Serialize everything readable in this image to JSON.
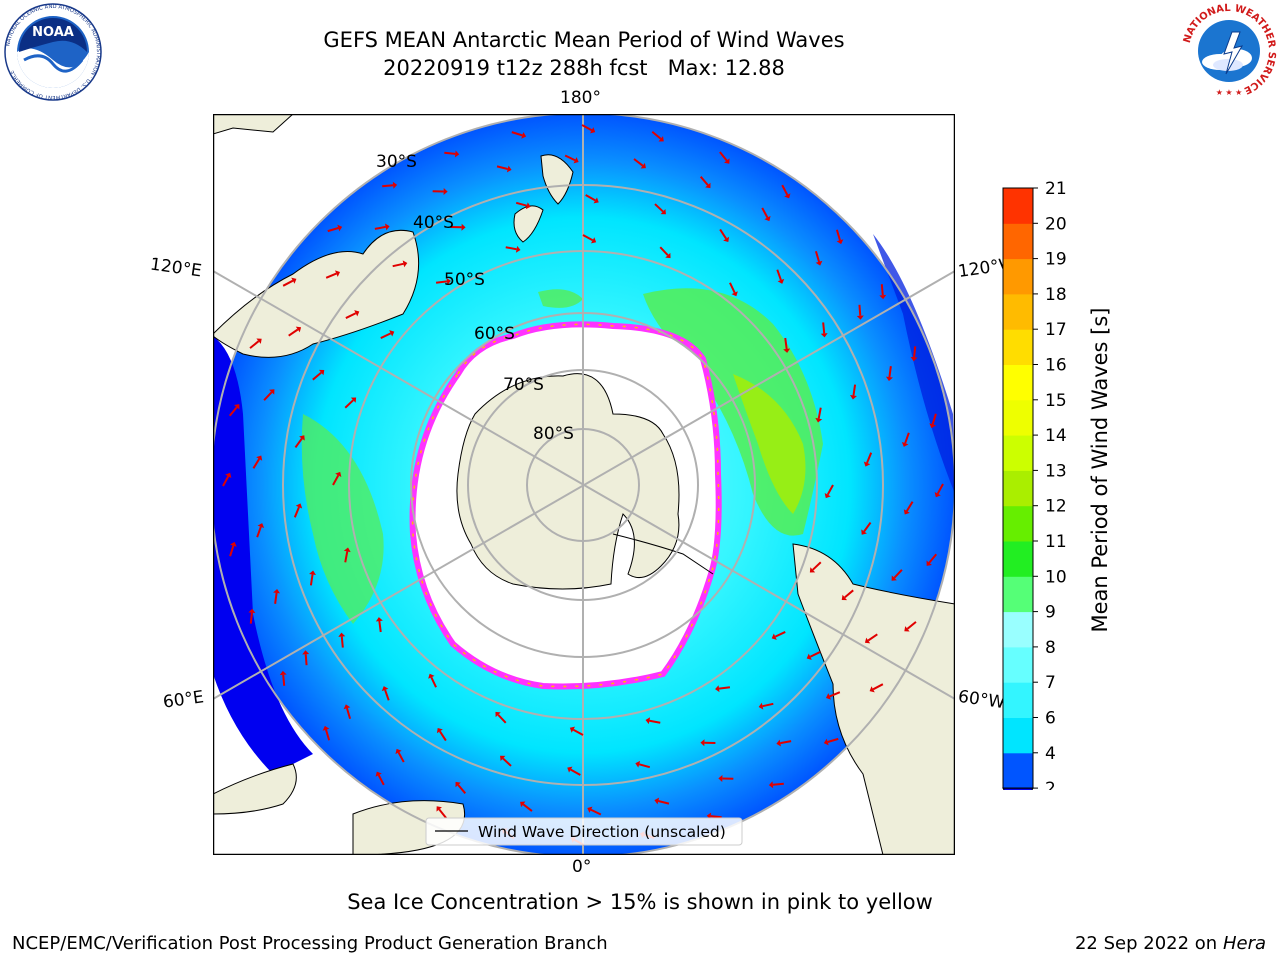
{
  "header": {
    "title": "GEFS MEAN Antarctic Mean Period of Wind Waves",
    "subtitle": "20220919 t12z 288h fcst   Max: 12.88"
  },
  "logos": {
    "noaa_text": "NOAA",
    "noaa_ring": "NATIONAL OCEANIC AND ATMOSPHERIC ADMINISTRATION · U.S. DEPARTMENT OF COMMERCE",
    "nws_ring": "NATIONAL WEATHER SERVICE"
  },
  "map": {
    "projection": "south-polar-stereographic",
    "lon_labels": {
      "top": "180°",
      "bottom": "0°",
      "upper_left": "120°E",
      "upper_right": "120°W",
      "lower_left": "60°E",
      "lower_right": "60°W"
    },
    "lat_labels": [
      "30°S",
      "40°S",
      "50°S",
      "60°S",
      "70°S",
      "80°S"
    ],
    "legend": "Wind Wave Direction (unscaled)",
    "colors": {
      "land": "#eeeeda",
      "ocean_low": "#0000ff",
      "ocean_mid": "#00e5ff",
      "ice": "#ffffff",
      "ice_edge": "#ff33ff",
      "arrow": "#ff0000",
      "grid": "#b0b0b0"
    }
  },
  "colorbar": {
    "label": "Mean Period of Wind Waves [s]",
    "ticks": [
      "2",
      "4",
      "6",
      "7",
      "8",
      "9",
      "10",
      "11",
      "12",
      "13",
      "14",
      "15",
      "16",
      "17",
      "18",
      "19",
      "20",
      "21"
    ],
    "colors": [
      "#0055ff",
      "#00e5ff",
      "#33f5ff",
      "#66ffff",
      "#99ffff",
      "#55ff77",
      "#22ee22",
      "#66ee00",
      "#aaee00",
      "#ccff00",
      "#eeff00",
      "#ffff00",
      "#ffdd00",
      "#ffbb00",
      "#ff9900",
      "#ff6600",
      "#ff3300",
      "#ff0000"
    ],
    "extend_color": "#0000ee"
  },
  "caption": "Sea Ice Concentration > 15% is shown in pink to yellow",
  "footer": {
    "left": "NCEP/EMC/Verification Post Processing Product Generation Branch",
    "right_date": "22 Sep 2022 on",
    "right_machine": "Hera"
  }
}
